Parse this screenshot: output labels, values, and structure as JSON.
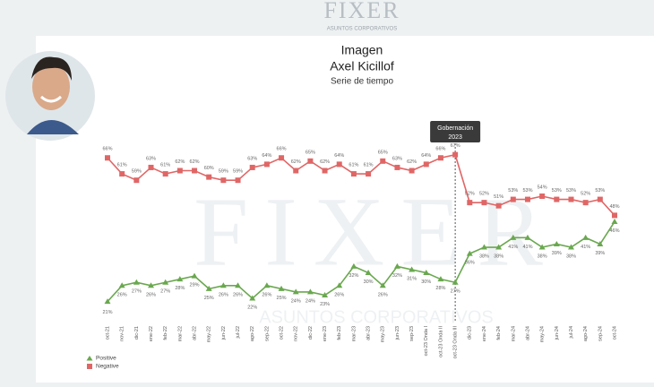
{
  "header": {
    "logo": "FIXER",
    "logo_subtitle": "ASUNTOS CORPORATIVOS"
  },
  "chart_data": {
    "type": "line",
    "title": "Imagen",
    "subtitle": "Axel Kicillof",
    "caption": "Serie de tiempo",
    "annotation": [
      "Gobernación",
      "2023"
    ],
    "categories": [
      "oct-21",
      "nov-21",
      "dic-21",
      "ene-22",
      "feb-22",
      "mar-22",
      "abr-22",
      "may-22",
      "jun-22",
      "jul-22",
      "ago-22",
      "sep-22",
      "oct-22",
      "nov-22",
      "dic-22",
      "ene-23",
      "feb-23",
      "mar-23",
      "abr-23",
      "may-23",
      "jun-23",
      "sep-23",
      "oct-23 Onda I",
      "oct-23 Onda II",
      "oct-23 Onda III",
      "dic-23",
      "ene-24",
      "feb-24",
      "mar-24",
      "abr-24",
      "may-24",
      "jun-24",
      "jul-24",
      "ago-24",
      "sep-24",
      "oct-24"
    ],
    "ylim": [
      15,
      70
    ],
    "legend": "bottom-left",
    "series": [
      {
        "name": "Positive",
        "color": "#6aa84f",
        "marker": "triangle",
        "values": [
          21,
          26,
          27,
          26,
          27,
          28,
          29,
          25,
          26,
          26,
          22,
          26,
          25,
          24,
          24,
          23,
          26,
          32,
          30,
          26,
          32,
          31,
          30,
          28,
          27,
          36,
          38,
          38,
          41,
          41,
          38,
          39,
          38,
          41,
          39,
          46
        ],
        "value_labels": [
          "21%",
          "26%",
          "27%",
          "26%",
          "27%",
          "28%",
          "29%",
          "25%",
          "26%",
          "26%",
          "22%",
          "26%",
          "25%",
          "24%",
          "24%",
          "23%",
          "26%",
          "32%",
          "30%",
          "26%",
          "32%",
          "31%",
          "30%",
          "28%",
          "27%",
          "36%",
          "38%",
          "38%",
          "41%",
          "41%",
          "38%",
          "39%",
          "38%",
          "41%",
          "39%",
          "46%"
        ]
      },
      {
        "name": "Negative",
        "color": "#e06666",
        "marker": "square",
        "values": [
          66,
          61,
          59,
          63,
          61,
          62,
          62,
          60,
          59,
          59,
          63,
          64,
          66,
          62,
          65,
          62,
          64,
          61,
          61,
          65,
          63,
          62,
          64,
          66,
          67,
          52,
          52,
          51,
          53,
          53,
          54,
          53,
          53,
          52,
          53,
          48
        ],
        "value_labels": [
          "66%",
          "61%",
          "59%",
          "63%",
          "61%",
          "62%",
          "62%",
          "60%",
          "59%",
          "59%",
          "63%",
          "64%",
          "66%",
          "62%",
          "65%",
          "62%",
          "64%",
          "61%",
          "61%",
          "65%",
          "63%",
          "62%",
          "64%",
          "66%",
          "67%",
          "52%",
          "52%",
          "51%",
          "53%",
          "53%",
          "54%",
          "53%",
          "53%",
          "52%",
          "53%",
          "48%"
        ]
      }
    ]
  }
}
